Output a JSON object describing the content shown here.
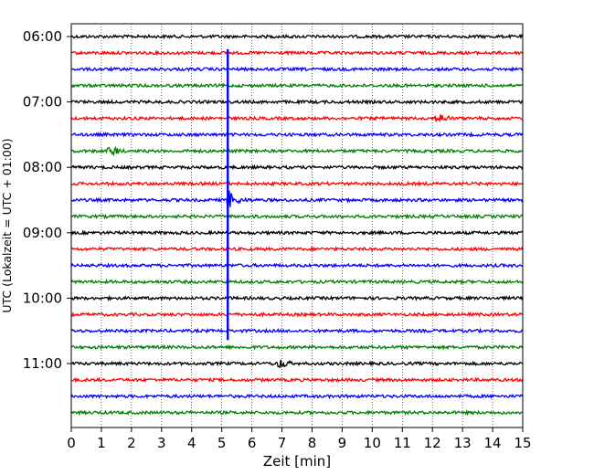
{
  "chart_data": {
    "type": "line",
    "xlabel": "Zeit  [min]",
    "ylabel": "UTC (Lokalzeit = UTC + 01:00)",
    "xlim": [
      0,
      15
    ],
    "x_ticks": [
      "0",
      "1",
      "2",
      "3",
      "4",
      "5",
      "6",
      "7",
      "8",
      "9",
      "10",
      "11",
      "12",
      "13",
      "14",
      "15"
    ],
    "y_ticks": [
      "06:00",
      "07:00",
      "08:00",
      "09:00",
      "10:00",
      "11:00"
    ],
    "grid": "vertical dotted",
    "trace_interval_min": 15,
    "traces": [
      {
        "start": "06:00",
        "color": "black"
      },
      {
        "start": "06:15",
        "color": "red"
      },
      {
        "start": "06:30",
        "color": "blue"
      },
      {
        "start": "06:45",
        "color": "green"
      },
      {
        "start": "07:00",
        "color": "black"
      },
      {
        "start": "07:15",
        "color": "red"
      },
      {
        "start": "07:30",
        "color": "blue"
      },
      {
        "start": "07:45",
        "color": "green"
      },
      {
        "start": "08:00",
        "color": "black"
      },
      {
        "start": "08:15",
        "color": "red"
      },
      {
        "start": "08:30",
        "color": "blue"
      },
      {
        "start": "08:45",
        "color": "green"
      },
      {
        "start": "09:00",
        "color": "black"
      },
      {
        "start": "09:15",
        "color": "red"
      },
      {
        "start": "09:30",
        "color": "blue"
      },
      {
        "start": "09:45",
        "color": "green"
      },
      {
        "start": "10:00",
        "color": "black"
      },
      {
        "start": "10:15",
        "color": "red"
      },
      {
        "start": "10:30",
        "color": "blue"
      },
      {
        "start": "10:45",
        "color": "green"
      },
      {
        "start": "11:00",
        "color": "black"
      },
      {
        "start": "11:15",
        "color": "red"
      },
      {
        "start": "11:30",
        "color": "blue"
      },
      {
        "start": "11:45",
        "color": "green"
      }
    ],
    "events": [
      {
        "trace_start": "08:30",
        "minute": 5.2,
        "description": "large spike spanning traces 06:15 to 10:30 with decaying coda to ~5.9 min"
      },
      {
        "trace_start": "07:45",
        "minute": 1.4,
        "description": "small burst"
      },
      {
        "trace_start": "07:15",
        "minute": 12.3,
        "description": "small burst"
      },
      {
        "trace_start": "11:00",
        "minute": 7.0,
        "description": "small burst"
      }
    ],
    "colors": {
      "black": "#000000",
      "red": "#ff0000",
      "blue": "#0000ff",
      "green": "#008000"
    }
  }
}
